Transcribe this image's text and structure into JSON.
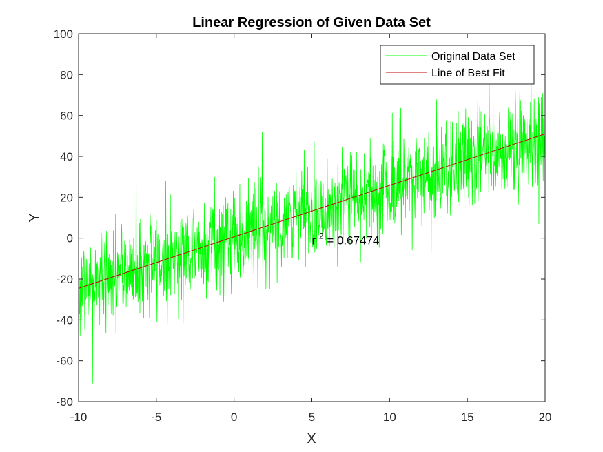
{
  "chart_data": {
    "type": "line",
    "title": "Linear Regression of Given Data Set",
    "xlabel": "X",
    "ylabel": "Y",
    "xlim": [
      -10,
      20
    ],
    "ylim": [
      -80,
      100
    ],
    "xticks": [
      -10,
      -5,
      0,
      5,
      10,
      15,
      20
    ],
    "yticks": [
      -80,
      -60,
      -40,
      -20,
      0,
      20,
      40,
      60,
      80,
      100
    ],
    "grid": false,
    "legend_position": "top-right",
    "annotation": {
      "base": "r",
      "superscript": "2",
      "text": " = 0.67474",
      "x": 5,
      "y": -1
    },
    "series": [
      {
        "name": "Original Data Set",
        "color": "#00ff00",
        "kind": "noisy",
        "x_range": [
          -10,
          20
        ],
        "n_points": 1500,
        "trend": {
          "slope": 2.5,
          "intercept": 0.5
        },
        "noise_sd": 12,
        "notable_points": [
          {
            "x": -9.1,
            "y": -71
          },
          {
            "x": -6.3,
            "y": 36
          },
          {
            "x": 1.8,
            "y": 52
          },
          {
            "x": 16.4,
            "y": 86
          },
          {
            "x": 19.6,
            "y": 7
          }
        ]
      },
      {
        "name": "Line of Best Fit",
        "color": "#c00000",
        "kind": "line",
        "x": [
          -10,
          20
        ],
        "y": [
          -24.5,
          51
        ]
      }
    ]
  }
}
